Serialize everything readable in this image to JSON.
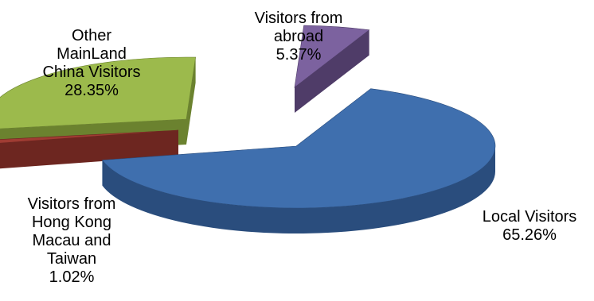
{
  "chart_data": {
    "type": "pie",
    "style": "3d-exploded",
    "slices": [
      {
        "label": [
          "Local Visitors"
        ],
        "value": 65.26,
        "display": "65.26%",
        "color": "#3f6fae",
        "dark": "#2a4d7d"
      },
      {
        "label": [
          "Visitors from",
          "Hong Kong",
          "Macau and",
          "Taiwan"
        ],
        "value": 1.02,
        "display": "1.02%",
        "color": "#a03c33",
        "dark": "#6d2620"
      },
      {
        "label": [
          "Other",
          "MainLand",
          "China Visitors"
        ],
        "value": 28.35,
        "display": "28.35%",
        "color": "#9cba4c",
        "dark": "#6b822f"
      },
      {
        "label": [
          "Visitors from",
          "abroad"
        ],
        "value": 5.37,
        "display": "5.37%",
        "color": "#7c629f",
        "dark": "#4f3c68"
      }
    ]
  }
}
